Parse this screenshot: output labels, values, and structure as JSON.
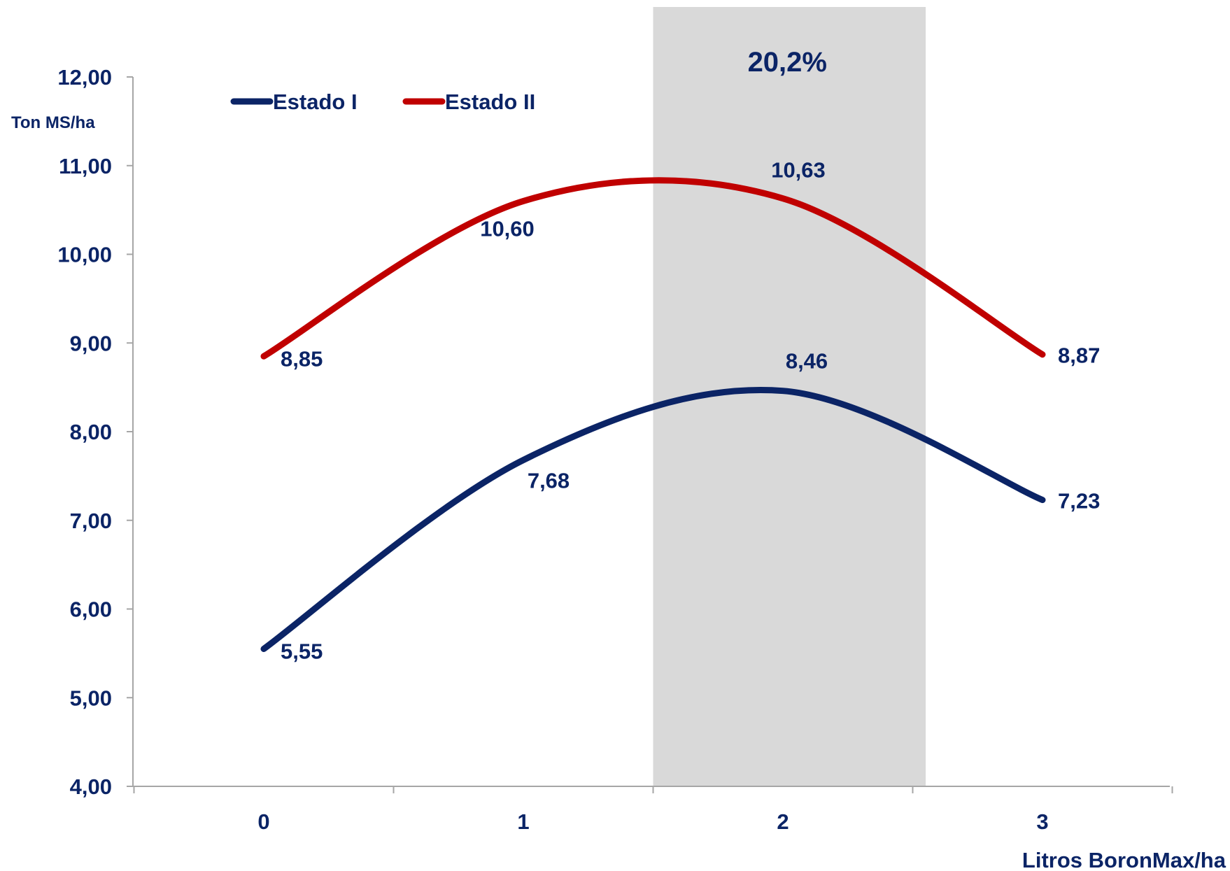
{
  "chart_data": {
    "type": "line",
    "title": "",
    "ylabel": "Ton MS/ha",
    "xlabel": "Litros BoronMax/ha",
    "categories": [
      "0",
      "1",
      "2",
      "3"
    ],
    "x": [
      0,
      1,
      2,
      3
    ],
    "ylim": [
      4,
      12
    ],
    "yticks": [
      4,
      5,
      6,
      7,
      8,
      9,
      10,
      11,
      12
    ],
    "yticks_labels": [
      "4,00",
      "5,00",
      "6,00",
      "7,00",
      "8,00",
      "9,00",
      "10,00",
      "11,00",
      "12,00"
    ],
    "smooth": true,
    "grid": false,
    "legend_position": "top-left",
    "series": [
      {
        "name": "Estado I",
        "color": "#0b2466",
        "values": [
          5.55,
          7.68,
          8.46,
          7.23
        ],
        "labels": [
          "5,55",
          "7,68",
          "8,46",
          "7,23"
        ]
      },
      {
        "name": "Estado II",
        "color": "#c00000",
        "values": [
          8.85,
          10.6,
          10.63,
          8.87
        ],
        "labels": [
          "8,85",
          "10,60",
          "10,63",
          "8,87"
        ]
      }
    ],
    "highlight": {
      "x_from": 1.5,
      "x_to": 2.55,
      "label": "20,2%",
      "color": "#d9d9d9"
    }
  }
}
